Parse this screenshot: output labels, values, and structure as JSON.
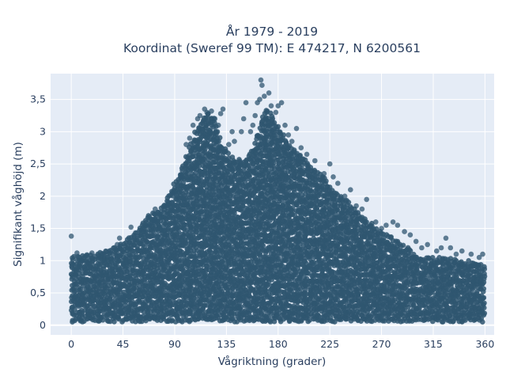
{
  "chart_data": {
    "type": "scatter",
    "title_lines": [
      "År 1979 - 2019",
      "Koordinat (Sweref 99 TM): E 474217, N 6200561"
    ],
    "xlabel": "Vågriktning (grader)",
    "ylabel": "Signifikant våghöjd (m)",
    "xlim": [
      -18,
      368
    ],
    "ylim": [
      -0.15,
      3.9
    ],
    "x_ticks": [
      0,
      45,
      90,
      135,
      180,
      225,
      270,
      315,
      360
    ],
    "x_tick_labels": [
      "0",
      "45",
      "90",
      "135",
      "180",
      "225",
      "270",
      "315",
      "360"
    ],
    "y_ticks": [
      0,
      0.5,
      1,
      1.5,
      2,
      2.5,
      3,
      3.5
    ],
    "y_tick_labels": [
      "0",
      "0,5",
      "1",
      "1,5",
      "2",
      "2,5",
      "3",
      "3,5"
    ],
    "grid": true,
    "marker_color": "#2f5670",
    "background": "#e5ecf6",
    "envelope": [
      [
        0,
        1.05
      ],
      [
        10,
        1.1
      ],
      [
        20,
        1.1
      ],
      [
        30,
        1.15
      ],
      [
        45,
        1.3
      ],
      [
        55,
        1.4
      ],
      [
        65,
        1.7
      ],
      [
        80,
        1.85
      ],
      [
        90,
        2.2
      ],
      [
        100,
        2.6
      ],
      [
        108,
        3.0
      ],
      [
        115,
        3.25
      ],
      [
        120,
        3.3
      ],
      [
        125,
        3.2
      ],
      [
        130,
        2.85
      ],
      [
        140,
        2.6
      ],
      [
        150,
        2.55
      ],
      [
        160,
        2.8
      ],
      [
        165,
        3.2
      ],
      [
        170,
        3.35
      ],
      [
        180,
        3.1
      ],
      [
        190,
        2.8
      ],
      [
        200,
        2.65
      ],
      [
        210,
        2.45
      ],
      [
        220,
        2.3
      ],
      [
        230,
        2.05
      ],
      [
        240,
        1.95
      ],
      [
        250,
        1.75
      ],
      [
        260,
        1.6
      ],
      [
        270,
        1.45
      ],
      [
        280,
        1.35
      ],
      [
        290,
        1.25
      ],
      [
        300,
        1.1
      ],
      [
        310,
        1.05
      ],
      [
        320,
        1.05
      ],
      [
        330,
        1.05
      ],
      [
        340,
        1.0
      ],
      [
        350,
        1.0
      ],
      [
        360,
        0.95
      ]
    ],
    "outliers": [
      [
        0,
        1.38
      ],
      [
        5,
        1.12
      ],
      [
        18,
        1.12
      ],
      [
        28,
        1.1
      ],
      [
        33,
        1.15
      ],
      [
        40,
        1.25
      ],
      [
        42,
        1.35
      ],
      [
        52,
        1.52
      ],
      [
        57,
        1.43
      ],
      [
        63,
        1.45
      ],
      [
        68,
        1.55
      ],
      [
        72,
        1.62
      ],
      [
        73,
        1.8
      ],
      [
        78,
        1.75
      ],
      [
        83,
        1.85
      ],
      [
        88,
        2.05
      ],
      [
        95,
        2.3
      ],
      [
        100,
        2.8
      ],
      [
        103,
        2.9
      ],
      [
        106,
        3.1
      ],
      [
        110,
        3.2
      ],
      [
        112,
        3.25
      ],
      [
        116,
        3.35
      ],
      [
        118,
        3.3
      ],
      [
        122,
        3.32
      ],
      [
        125,
        3.2
      ],
      [
        128,
        3.1
      ],
      [
        130,
        3.28
      ],
      [
        132,
        3.35
      ],
      [
        137,
        2.8
      ],
      [
        140,
        3.0
      ],
      [
        142,
        2.85
      ],
      [
        148,
        3.0
      ],
      [
        150,
        3.2
      ],
      [
        152,
        3.45
      ],
      [
        156,
        3.0
      ],
      [
        158,
        3.1
      ],
      [
        160,
        3.25
      ],
      [
        162,
        3.45
      ],
      [
        164,
        3.5
      ],
      [
        165,
        3.8
      ],
      [
        166,
        3.72
      ],
      [
        168,
        3.55
      ],
      [
        170,
        3.3
      ],
      [
        172,
        3.6
      ],
      [
        174,
        3.4
      ],
      [
        176,
        3.1
      ],
      [
        178,
        3.3
      ],
      [
        180,
        3.4
      ],
      [
        183,
        3.45
      ],
      [
        186,
        3.1
      ],
      [
        189,
        2.95
      ],
      [
        192,
        2.85
      ],
      [
        196,
        3.05
      ],
      [
        200,
        2.75
      ],
      [
        205,
        2.65
      ],
      [
        212,
        2.55
      ],
      [
        220,
        2.35
      ],
      [
        225,
        2.5
      ],
      [
        228,
        2.3
      ],
      [
        232,
        2.2
      ],
      [
        238,
        2.0
      ],
      [
        243,
        2.1
      ],
      [
        248,
        1.85
      ],
      [
        253,
        1.8
      ],
      [
        257,
        1.95
      ],
      [
        265,
        1.6
      ],
      [
        270,
        1.5
      ],
      [
        274,
        1.55
      ],
      [
        280,
        1.6
      ],
      [
        284,
        1.55
      ],
      [
        290,
        1.45
      ],
      [
        295,
        1.4
      ],
      [
        300,
        1.3
      ],
      [
        305,
        1.2
      ],
      [
        310,
        1.25
      ],
      [
        318,
        1.15
      ],
      [
        322,
        1.2
      ],
      [
        326,
        1.35
      ],
      [
        330,
        1.2
      ],
      [
        335,
        1.1
      ],
      [
        340,
        1.15
      ],
      [
        348,
        1.1
      ],
      [
        355,
        1.05
      ],
      [
        358,
        1.1
      ]
    ]
  }
}
